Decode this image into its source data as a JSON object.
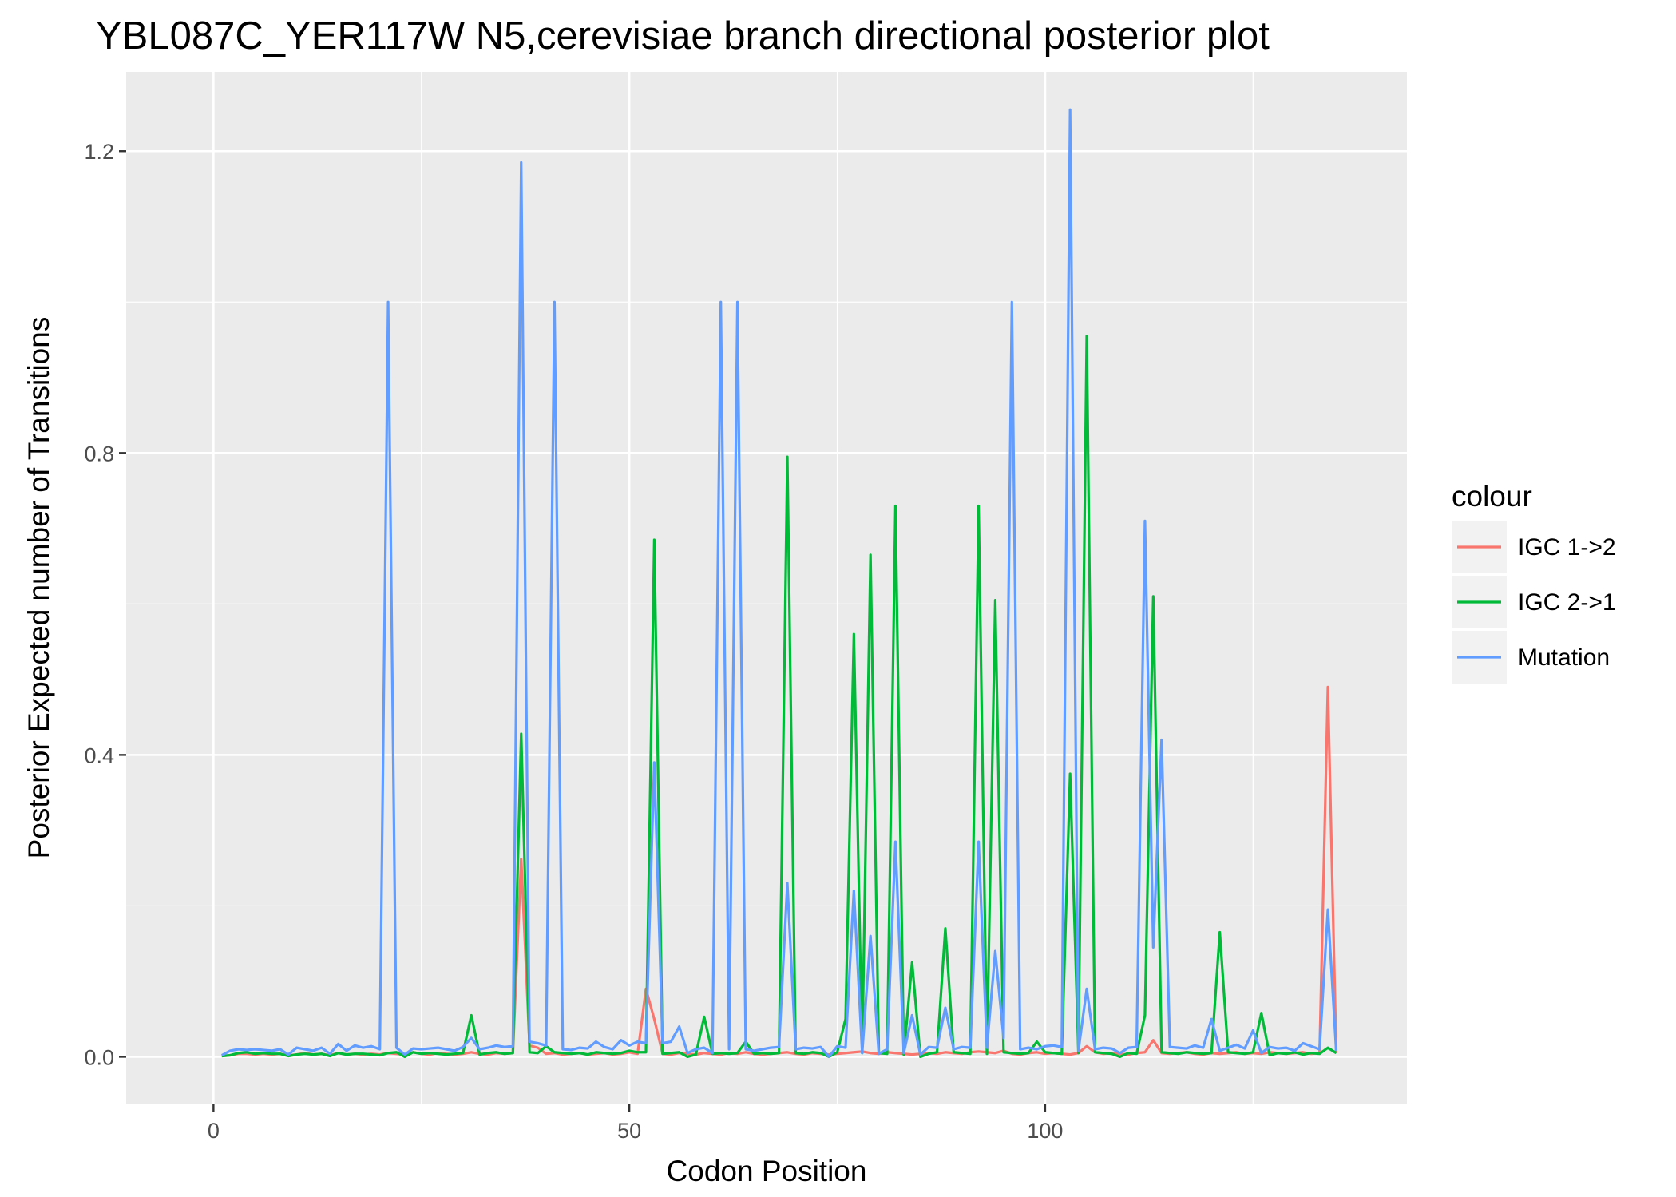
{
  "chart_data": {
    "type": "line",
    "title": "YBL087C_YER117W N5,cerevisiae branch directional posterior plot",
    "xlabel": "Codon Position",
    "ylabel": "Posterior Expected number of Transitions",
    "xlim": [
      -10.5,
      143.5
    ],
    "ylim": [
      -0.063,
      1.305
    ],
    "xticks": [
      0,
      50,
      100
    ],
    "xtick_labels": [
      "0",
      "50",
      "100"
    ],
    "yticks": [
      0.0,
      0.4,
      0.8,
      1.2
    ],
    "ytick_labels": [
      "0.0",
      "0.4",
      "0.8",
      "1.2"
    ],
    "grid": true,
    "legend": {
      "title": "colour",
      "position": "right"
    },
    "x": [
      1,
      2,
      3,
      4,
      5,
      6,
      7,
      8,
      9,
      10,
      11,
      12,
      13,
      14,
      15,
      16,
      17,
      18,
      19,
      20,
      21,
      22,
      23,
      24,
      25,
      26,
      27,
      28,
      29,
      30,
      31,
      32,
      33,
      34,
      35,
      36,
      37,
      38,
      39,
      40,
      41,
      42,
      43,
      44,
      45,
      46,
      47,
      48,
      49,
      50,
      51,
      52,
      53,
      54,
      55,
      56,
      57,
      58,
      59,
      60,
      61,
      62,
      63,
      64,
      65,
      66,
      67,
      68,
      69,
      70,
      71,
      72,
      73,
      74,
      75,
      76,
      77,
      78,
      79,
      80,
      81,
      82,
      83,
      84,
      85,
      86,
      87,
      88,
      89,
      90,
      91,
      92,
      93,
      94,
      95,
      96,
      97,
      98,
      99,
      100,
      101,
      102,
      103,
      104,
      105,
      106,
      107,
      108,
      109,
      110,
      111,
      112,
      113,
      114,
      115,
      116,
      117,
      118,
      119,
      120,
      121,
      122,
      123,
      124,
      125,
      126,
      127,
      128,
      129,
      130,
      131,
      132,
      133,
      134,
      135
    ],
    "series": [
      {
        "name": "IGC 1->2",
        "color": "#F8766D",
        "values": [
          0.001,
          0.002,
          0.004,
          0.004,
          0.003,
          0.004,
          0.003,
          0.004,
          0.002,
          0.003,
          0.005,
          0.003,
          0.004,
          0.002,
          0.005,
          0.003,
          0.004,
          0.003,
          0.004,
          0.003,
          0.005,
          0.004,
          0.003,
          0.006,
          0.004,
          0.003,
          0.005,
          0.004,
          0.003,
          0.004,
          0.006,
          0.004,
          0.003,
          0.005,
          0.004,
          0.005,
          0.262,
          0.015,
          0.012,
          0.004,
          0.005,
          0.003,
          0.004,
          0.005,
          0.003,
          0.004,
          0.005,
          0.003,
          0.004,
          0.006,
          0.004,
          0.09,
          0.05,
          0.004,
          0.003,
          0.005,
          0.004,
          0.003,
          0.005,
          0.004,
          0.003,
          0.005,
          0.004,
          0.006,
          0.004,
          0.003,
          0.004,
          0.005,
          0.006,
          0.004,
          0.003,
          0.005,
          0.004,
          0.003,
          0.004,
          0.005,
          0.006,
          0.007,
          0.005,
          0.004,
          0.006,
          0.005,
          0.004,
          0.003,
          0.004,
          0.005,
          0.004,
          0.006,
          0.005,
          0.004,
          0.006,
          0.007,
          0.006,
          0.005,
          0.008,
          0.004,
          0.003,
          0.005,
          0.006,
          0.004,
          0.005,
          0.004,
          0.003,
          0.005,
          0.014,
          0.006,
          0.004,
          0.005,
          0.004,
          0.003,
          0.005,
          0.006,
          0.022,
          0.005,
          0.004,
          0.005,
          0.006,
          0.004,
          0.003,
          0.005,
          0.004,
          0.005,
          0.006,
          0.004,
          0.005,
          0.004,
          0.006,
          0.005,
          0.004,
          0.005,
          0.006,
          0.004,
          0.005,
          0.49,
          0.005
        ]
      },
      {
        "name": "IGC 2->1",
        "color": "#00BA38",
        "values": [
          0.001,
          0.002,
          0.005,
          0.006,
          0.004,
          0.005,
          0.004,
          0.004,
          0.001,
          0.003,
          0.004,
          0.003,
          0.004,
          0.001,
          0.005,
          0.003,
          0.004,
          0.004,
          0.003,
          0.002,
          0.005,
          0.006,
          0.0,
          0.006,
          0.004,
          0.005,
          0.004,
          0.003,
          0.004,
          0.005,
          0.055,
          0.003,
          0.005,
          0.006,
          0.004,
          0.005,
          0.428,
          0.006,
          0.005,
          0.014,
          0.006,
          0.005,
          0.004,
          0.005,
          0.003,
          0.006,
          0.005,
          0.004,
          0.005,
          0.008,
          0.006,
          0.006,
          0.685,
          0.004,
          0.005,
          0.006,
          0.0,
          0.003,
          0.053,
          0.004,
          0.005,
          0.004,
          0.005,
          0.02,
          0.004,
          0.005,
          0.004,
          0.005,
          0.795,
          0.005,
          0.004,
          0.006,
          0.005,
          0.0,
          0.006,
          0.05,
          0.56,
          0.005,
          0.665,
          0.005,
          0.004,
          0.73,
          0.003,
          0.125,
          0.0,
          0.004,
          0.006,
          0.17,
          0.006,
          0.005,
          0.004,
          0.73,
          0.004,
          0.605,
          0.006,
          0.005,
          0.004,
          0.005,
          0.02,
          0.006,
          0.005,
          0.004,
          0.375,
          0.005,
          0.955,
          0.006,
          0.005,
          0.004,
          0.0,
          0.005,
          0.004,
          0.055,
          0.61,
          0.006,
          0.005,
          0.004,
          0.006,
          0.005,
          0.004,
          0.005,
          0.165,
          0.006,
          0.005,
          0.004,
          0.006,
          0.058,
          0.002,
          0.005,
          0.004,
          0.006,
          0.003,
          0.005,
          0.004,
          0.012,
          0.005
        ]
      },
      {
        "name": "Mutation",
        "color": "#619CFF",
        "values": [
          0.002,
          0.008,
          0.01,
          0.009,
          0.01,
          0.009,
          0.008,
          0.01,
          0.003,
          0.012,
          0.01,
          0.008,
          0.012,
          0.004,
          0.017,
          0.008,
          0.015,
          0.012,
          0.014,
          0.01,
          1.0,
          0.012,
          0.003,
          0.011,
          0.01,
          0.011,
          0.012,
          0.01,
          0.008,
          0.013,
          0.025,
          0.01,
          0.012,
          0.015,
          0.013,
          0.014,
          1.185,
          0.02,
          0.018,
          0.015,
          1.0,
          0.01,
          0.009,
          0.012,
          0.011,
          0.02,
          0.013,
          0.01,
          0.022,
          0.015,
          0.02,
          0.018,
          0.39,
          0.018,
          0.02,
          0.04,
          0.005,
          0.01,
          0.012,
          0.005,
          1.0,
          0.01,
          1.0,
          0.01,
          0.008,
          0.01,
          0.012,
          0.013,
          0.23,
          0.01,
          0.012,
          0.011,
          0.013,
          0.0,
          0.014,
          0.012,
          0.22,
          0.005,
          0.16,
          0.004,
          0.01,
          0.285,
          0.005,
          0.055,
          0.003,
          0.013,
          0.012,
          0.065,
          0.01,
          0.013,
          0.012,
          0.285,
          0.012,
          0.14,
          0.025,
          1.0,
          0.01,
          0.012,
          0.01,
          0.014,
          0.015,
          0.013,
          1.255,
          0.008,
          0.09,
          0.01,
          0.012,
          0.011,
          0.005,
          0.012,
          0.013,
          0.71,
          0.145,
          0.42,
          0.013,
          0.012,
          0.011,
          0.015,
          0.012,
          0.05,
          0.008,
          0.012,
          0.016,
          0.011,
          0.035,
          0.005,
          0.013,
          0.011,
          0.012,
          0.008,
          0.018,
          0.014,
          0.01,
          0.195,
          0.008
        ]
      }
    ]
  }
}
